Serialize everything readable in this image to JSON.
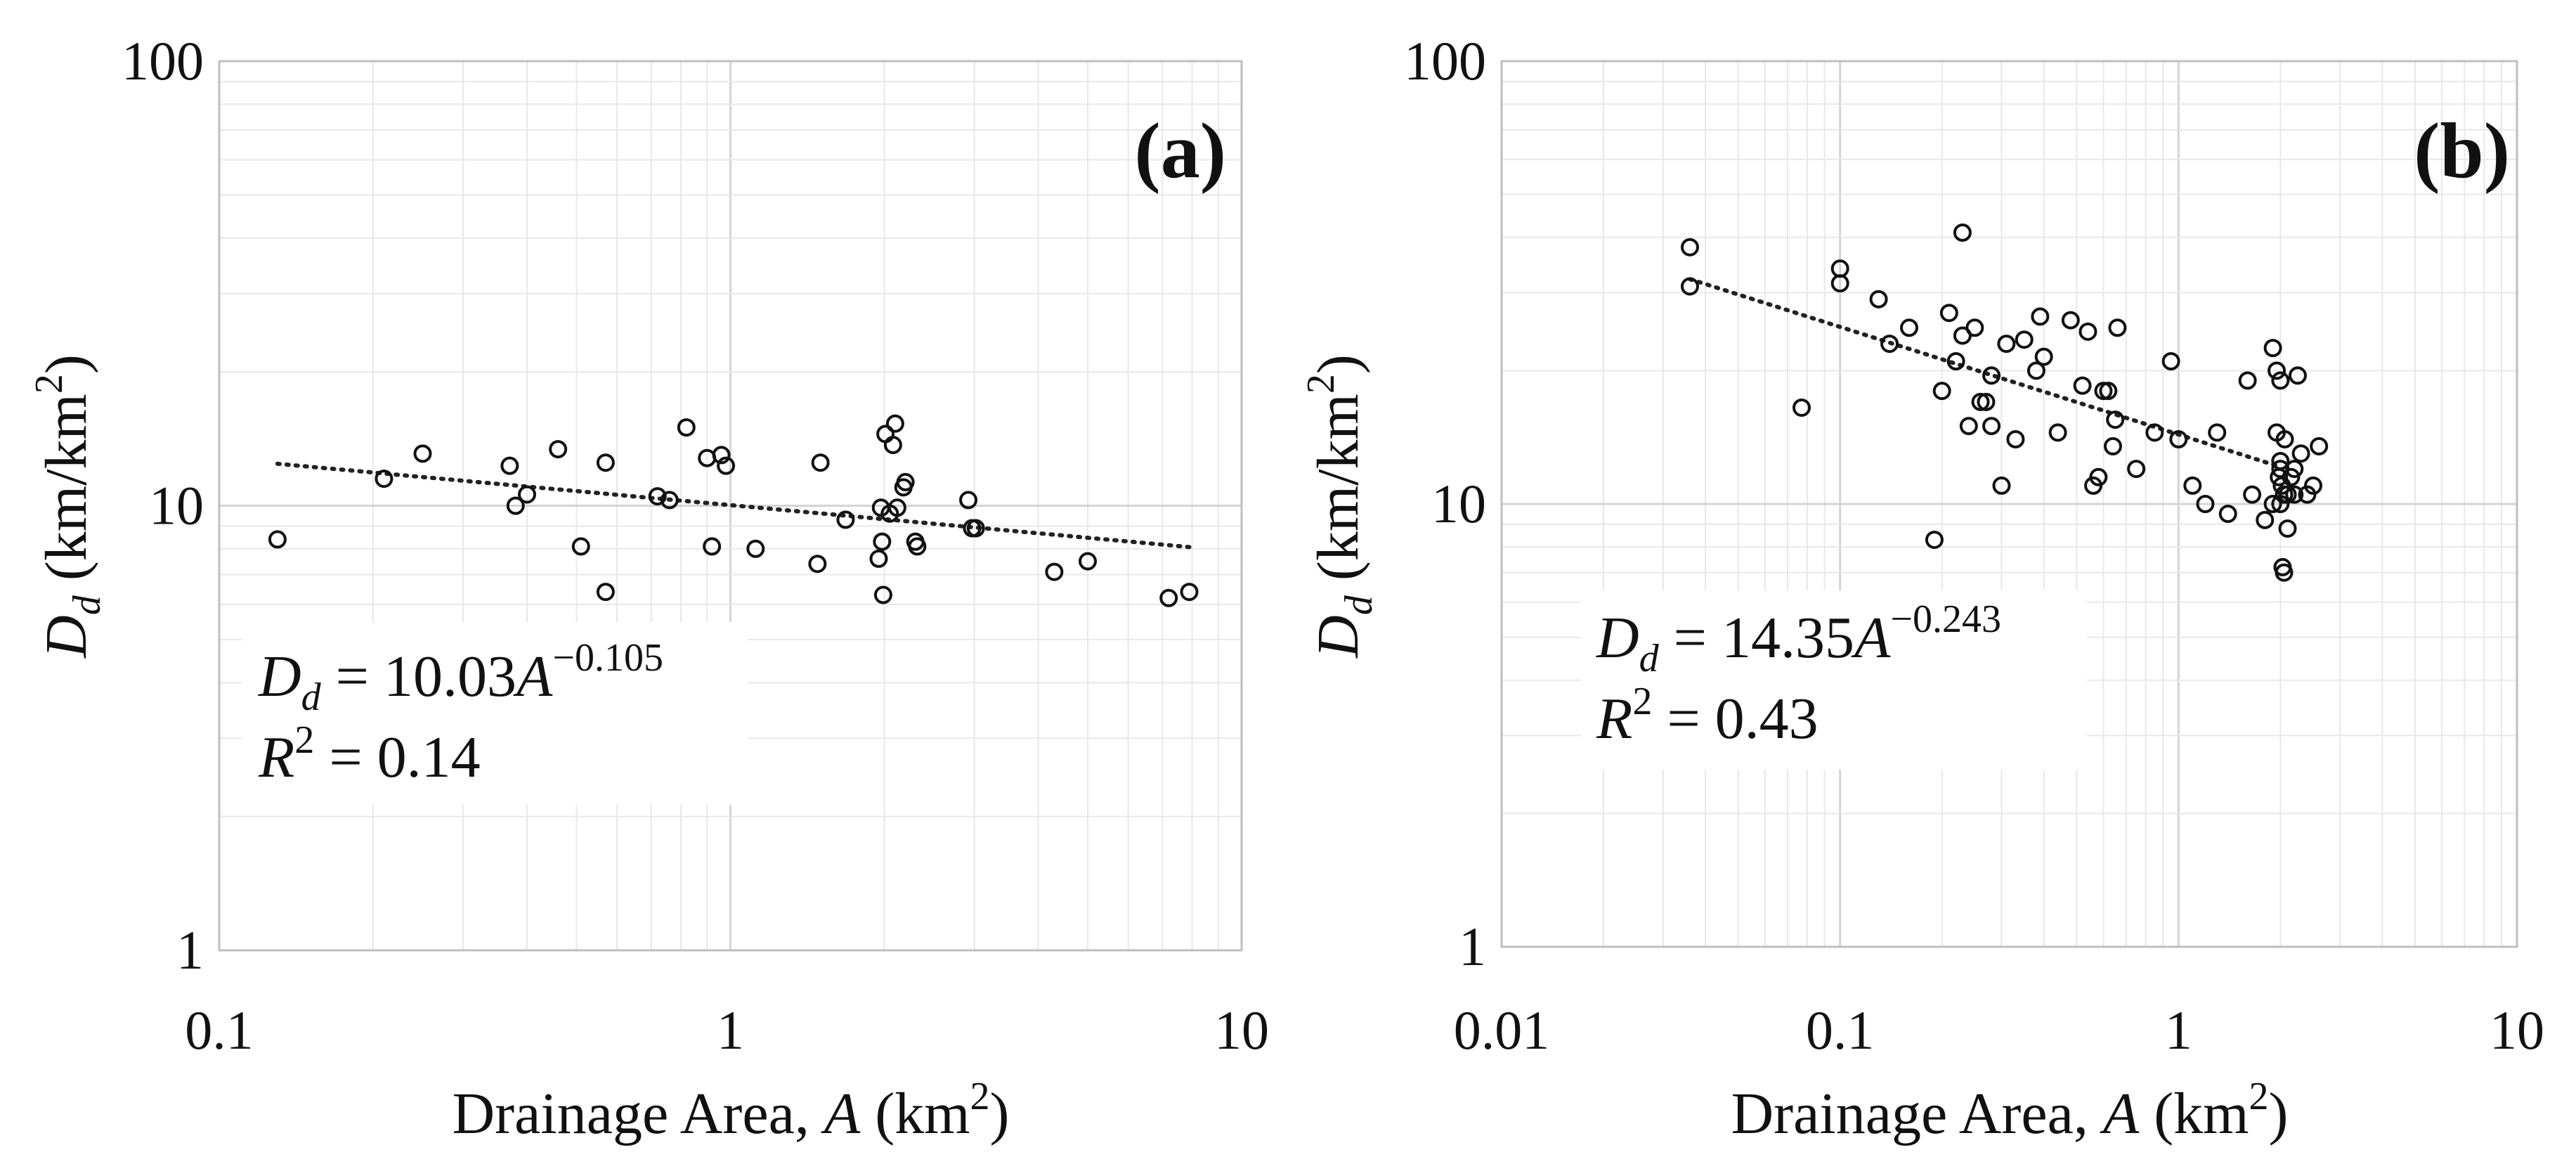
{
  "chart_data": [
    {
      "type": "scatter",
      "panel": "(a)",
      "xlabel": {
        "main": "Drainage Area, ",
        "var": "A",
        "unit_pre": " (km",
        "unit_sup": "2",
        "unit_post": ")"
      },
      "ylabel": {
        "var": "D",
        "sub": "d",
        "unit_pre": " (km/km",
        "unit_sup": "2",
        "unit_post": ")"
      },
      "xscale": "log",
      "yscale": "log",
      "xlim": [
        0.1,
        10
      ],
      "ylim": [
        1,
        100
      ],
      "x_ticks": [
        {
          "value": 0.1,
          "label": "0.1"
        },
        {
          "value": 1,
          "label": "1"
        },
        {
          "value": 10,
          "label": "10"
        }
      ],
      "y_ticks": [
        {
          "value": 1,
          "label": "1"
        },
        {
          "value": 10,
          "label": "10"
        },
        {
          "value": 100,
          "label": "100"
        }
      ],
      "trendline": {
        "type": "power",
        "coef": 10.03,
        "exp": -0.105,
        "x_range": [
          0.13,
          8.0
        ]
      },
      "equation": {
        "lhs_var": "D",
        "lhs_sub": "d",
        "rhs": " = 10.03",
        "rhs_var": "A",
        "exp": "−0.105"
      },
      "r2": {
        "label": "R",
        "sup": "2",
        "value": " = 0.14"
      },
      "x": [
        0.13,
        0.21,
        0.25,
        0.37,
        0.38,
        0.4,
        0.46,
        0.51,
        0.57,
        0.57,
        0.72,
        0.76,
        0.82,
        0.9,
        0.92,
        0.96,
        0.98,
        1.12,
        1.48,
        1.5,
        1.68,
        1.95,
        1.97,
        1.98,
        1.99,
        2.01,
        2.05,
        2.08,
        2.1,
        2.12,
        2.18,
        2.2,
        2.3,
        2.32,
        2.92,
        2.97,
        3.02,
        4.3,
        5.0,
        7.2,
        7.9
      ],
      "y": [
        8.4,
        11.5,
        13.1,
        12.3,
        10.0,
        10.6,
        13.4,
        8.1,
        12.5,
        6.4,
        10.5,
        10.3,
        15.0,
        12.8,
        8.1,
        13.0,
        12.3,
        8.0,
        7.4,
        12.5,
        9.3,
        7.6,
        9.9,
        8.3,
        6.3,
        14.5,
        9.6,
        13.7,
        15.3,
        9.9,
        11.0,
        11.3,
        8.3,
        8.1,
        10.3,
        8.9,
        8.9,
        7.1,
        7.5,
        6.2,
        6.4
      ]
    },
    {
      "type": "scatter",
      "panel": "(b)",
      "xlabel": {
        "main": "Drainage Area, ",
        "var": "A",
        "unit_pre": " (km",
        "unit_sup": "2",
        "unit_post": ")"
      },
      "ylabel": {
        "var": "D",
        "sub": "d",
        "unit_pre": " (km/km",
        "unit_sup": "2",
        "unit_post": ")"
      },
      "xscale": "log",
      "yscale": "log",
      "xlim": [
        0.01,
        10
      ],
      "ylim": [
        1,
        100
      ],
      "x_ticks": [
        {
          "value": 0.01,
          "label": "0.01"
        },
        {
          "value": 0.1,
          "label": "0.1"
        },
        {
          "value": 1,
          "label": "1"
        },
        {
          "value": 10,
          "label": "10"
        }
      ],
      "y_ticks": [
        {
          "value": 1,
          "label": "1"
        },
        {
          "value": 10,
          "label": "10"
        },
        {
          "value": 100,
          "label": "100"
        }
      ],
      "trendline": {
        "type": "power",
        "coef": 14.35,
        "exp": -0.243,
        "x_range": [
          0.036,
          2.0
        ]
      },
      "equation": {
        "lhs_var": "D",
        "lhs_sub": "d",
        "rhs": " = 14.35",
        "rhs_var": "A",
        "exp": "−0.243"
      },
      "r2": {
        "label": "R",
        "sup": "2",
        "value": " = 0.43"
      },
      "x": [
        0.036,
        0.036,
        0.077,
        0.1,
        0.1,
        0.13,
        0.14,
        0.16,
        0.19,
        0.2,
        0.21,
        0.22,
        0.23,
        0.23,
        0.24,
        0.25,
        0.26,
        0.27,
        0.28,
        0.28,
        0.3,
        0.31,
        0.33,
        0.35,
        0.38,
        0.39,
        0.4,
        0.44,
        0.48,
        0.52,
        0.54,
        0.56,
        0.58,
        0.6,
        0.62,
        0.64,
        0.65,
        0.66,
        0.75,
        0.85,
        0.95,
        1.0,
        1.1,
        1.2,
        1.3,
        1.4,
        1.6,
        1.65,
        1.8,
        1.9,
        1.95,
        2.0,
        2.0,
        2.02,
        2.03,
        2.05,
        2.05,
        2.06,
        2.1,
        2.15,
        2.2,
        2.25,
        2.3,
        2.4,
        2.5,
        2.6,
        2.0,
        2.0,
        1.95,
        1.9,
        2.1,
        2.2,
        1.98
      ],
      "y": [
        38.0,
        31.0,
        16.5,
        34.0,
        31.5,
        29.0,
        23.0,
        25.0,
        8.3,
        18.0,
        27.0,
        21.0,
        24.0,
        41.0,
        15.0,
        25.0,
        17.0,
        17.0,
        15.0,
        19.5,
        11.0,
        23.0,
        14.0,
        23.5,
        20.0,
        26.5,
        21.5,
        14.5,
        26.0,
        18.5,
        24.5,
        11.0,
        11.5,
        18.0,
        18.0,
        13.5,
        15.5,
        25.0,
        12.0,
        14.5,
        21.0,
        14.0,
        11.0,
        10.0,
        14.5,
        9.5,
        19.0,
        10.5,
        9.2,
        22.5,
        20.0,
        19.0,
        12.0,
        11.0,
        7.2,
        7.0,
        10.5,
        14.0,
        10.5,
        11.5,
        12.0,
        19.5,
        13.0,
        10.5,
        11.0,
        13.5,
        12.5,
        10.0,
        14.5,
        10.0,
        8.8,
        10.5,
        11.5
      ]
    }
  ]
}
